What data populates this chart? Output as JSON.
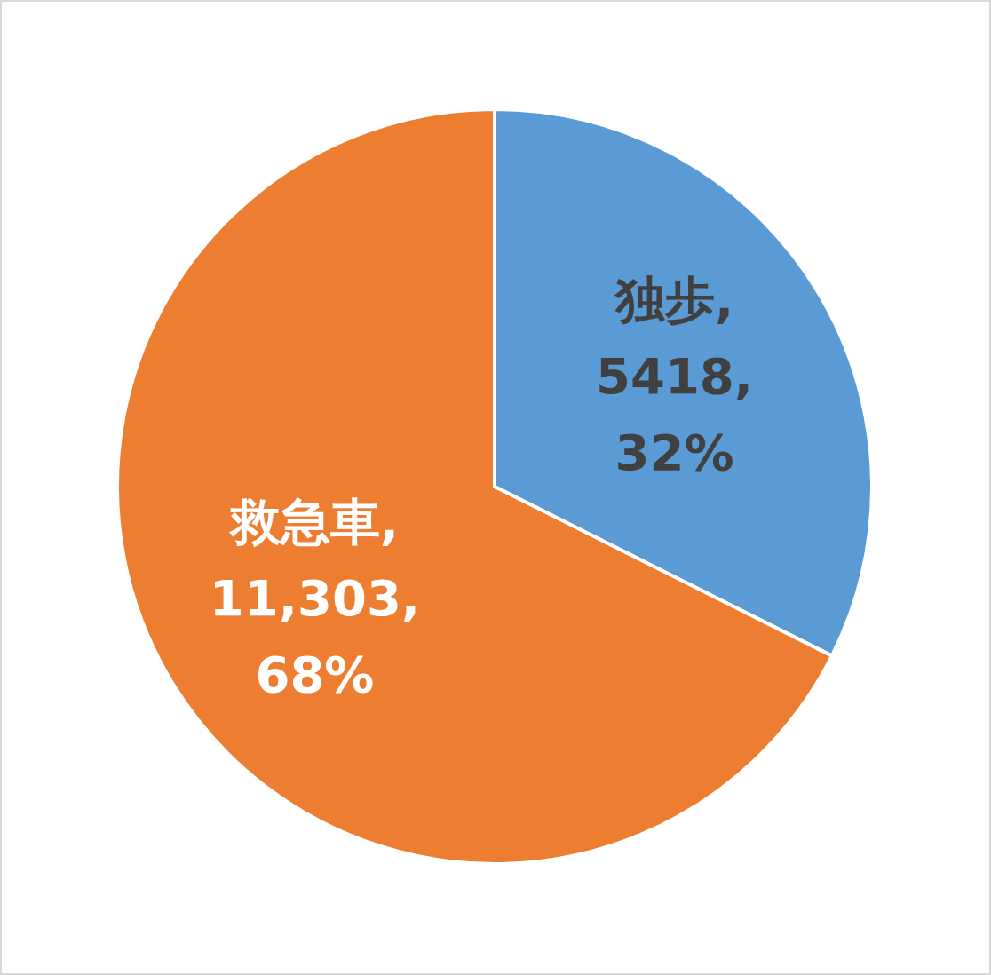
{
  "chart_data": {
    "type": "pie",
    "categories": [
      "独歩",
      "救急車"
    ],
    "values": [
      5418,
      11303
    ],
    "value_labels": [
      ",\n5418,\n32%",
      ",\n11,303,\n68%"
    ],
    "colors": [
      "#5b9bd5",
      "#ed7d31"
    ]
  }
}
